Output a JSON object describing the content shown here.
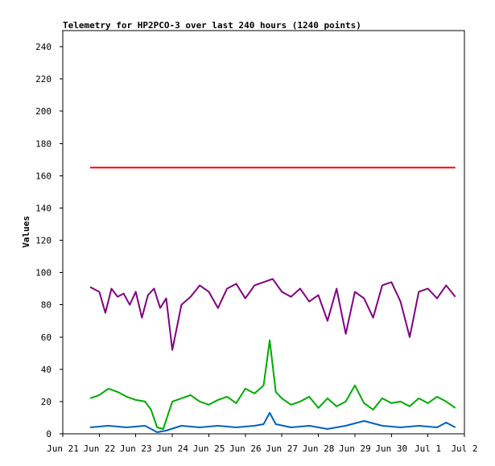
{
  "chart_data": {
    "type": "line",
    "title": "Telemetry for HP2PCO-3 over last 240 hours (1240 points)",
    "xlabel": "",
    "ylabel": "Values",
    "ylim": [
      0,
      250
    ],
    "yticks": [
      0,
      20,
      40,
      60,
      80,
      100,
      120,
      140,
      160,
      180,
      200,
      220,
      240
    ],
    "xlim": [
      "2014-06-21",
      "2014-07-02"
    ],
    "xticks": [
      {
        "x": "2014-06-21",
        "label": "Jun 21"
      },
      {
        "x": "2014-06-22",
        "label": "Jun 22"
      },
      {
        "x": "2014-06-23",
        "label": "Jun 23"
      },
      {
        "x": "2014-06-24",
        "label": "Jun 24"
      },
      {
        "x": "2014-06-25",
        "label": "Jun 25"
      },
      {
        "x": "2014-06-26",
        "label": "Jun 26"
      },
      {
        "x": "2014-06-27",
        "label": "Jun 27"
      },
      {
        "x": "2014-06-28",
        "label": "Jun 28"
      },
      {
        "x": "2014-06-29",
        "label": "Jun 29"
      },
      {
        "x": "2014-06-30",
        "label": "Jun 30"
      },
      {
        "x": "2014-07-01",
        "label": "Jul 1"
      },
      {
        "x": "2014-07-02",
        "label": "Jul 2"
      }
    ],
    "grid": false,
    "legend": "none",
    "series": [
      {
        "color": "#ff0000",
        "x": [
          "2014-06-21 18:00",
          "2014-06-22 12:00",
          "2014-06-23 12:00",
          "2014-06-24 12:00",
          "2014-06-25 12:00",
          "2014-06-26 12:00",
          "2014-06-27 12:00",
          "2014-06-28 12:00",
          "2014-06-29 12:00",
          "2014-06-30 12:00",
          "2014-07-01 12:00",
          "2014-07-01 18:00"
        ],
        "y": [
          165,
          165,
          165,
          165,
          165,
          165,
          165,
          165,
          165,
          165,
          165,
          165
        ]
      },
      {
        "color": "#800080",
        "x": [
          "2014-06-21 18:00",
          "2014-06-22 00:00",
          "2014-06-22 04:00",
          "2014-06-22 08:00",
          "2014-06-22 12:00",
          "2014-06-22 16:00",
          "2014-06-22 20:00",
          "2014-06-23 00:00",
          "2014-06-23 04:00",
          "2014-06-23 08:00",
          "2014-06-23 12:00",
          "2014-06-23 16:00",
          "2014-06-23 20:00",
          "2014-06-24 00:00",
          "2014-06-24 06:00",
          "2014-06-24 12:00",
          "2014-06-24 18:00",
          "2014-06-25 00:00",
          "2014-06-25 06:00",
          "2014-06-25 12:00",
          "2014-06-25 18:00",
          "2014-06-26 00:00",
          "2014-06-26 06:00",
          "2014-06-26 12:00",
          "2014-06-26 18:00",
          "2014-06-27 00:00",
          "2014-06-27 06:00",
          "2014-06-27 12:00",
          "2014-06-27 18:00",
          "2014-06-28 00:00",
          "2014-06-28 06:00",
          "2014-06-28 12:00",
          "2014-06-28 18:00",
          "2014-06-29 00:00",
          "2014-06-29 06:00",
          "2014-06-29 12:00",
          "2014-06-29 18:00",
          "2014-06-30 00:00",
          "2014-06-30 06:00",
          "2014-06-30 12:00",
          "2014-06-30 18:00",
          "2014-07-01 00:00",
          "2014-07-01 06:00",
          "2014-07-01 12:00",
          "2014-07-01 18:00"
        ],
        "y": [
          91,
          88,
          75,
          90,
          85,
          87,
          80,
          88,
          72,
          86,
          90,
          78,
          84,
          52,
          80,
          85,
          92,
          88,
          78,
          90,
          93,
          84,
          92,
          94,
          96,
          88,
          85,
          90,
          82,
          86,
          70,
          90,
          62,
          88,
          84,
          72,
          92,
          94,
          82,
          60,
          88,
          90,
          84,
          92,
          85
        ]
      },
      {
        "color": "#00aa00",
        "x": [
          "2014-06-21 18:00",
          "2014-06-22 00:00",
          "2014-06-22 06:00",
          "2014-06-22 12:00",
          "2014-06-22 18:00",
          "2014-06-23 00:00",
          "2014-06-23 06:00",
          "2014-06-23 10:00",
          "2014-06-23 14:00",
          "2014-06-23 18:00",
          "2014-06-24 00:00",
          "2014-06-24 06:00",
          "2014-06-24 12:00",
          "2014-06-24 18:00",
          "2014-06-25 00:00",
          "2014-06-25 06:00",
          "2014-06-25 12:00",
          "2014-06-25 18:00",
          "2014-06-26 00:00",
          "2014-06-26 06:00",
          "2014-06-26 12:00",
          "2014-06-26 16:00",
          "2014-06-26 20:00",
          "2014-06-27 00:00",
          "2014-06-27 06:00",
          "2014-06-27 12:00",
          "2014-06-27 18:00",
          "2014-06-28 00:00",
          "2014-06-28 06:00",
          "2014-06-28 12:00",
          "2014-06-28 18:00",
          "2014-06-29 00:00",
          "2014-06-29 06:00",
          "2014-06-29 12:00",
          "2014-06-29 18:00",
          "2014-06-30 00:00",
          "2014-06-30 06:00",
          "2014-06-30 12:00",
          "2014-06-30 18:00",
          "2014-07-01 00:00",
          "2014-07-01 06:00",
          "2014-07-01 12:00",
          "2014-07-01 18:00"
        ],
        "y": [
          22,
          24,
          28,
          26,
          23,
          21,
          20,
          15,
          4,
          3,
          20,
          22,
          24,
          20,
          18,
          21,
          23,
          19,
          28,
          25,
          30,
          58,
          26,
          22,
          18,
          20,
          23,
          16,
          22,
          17,
          20,
          30,
          19,
          15,
          22,
          19,
          20,
          17,
          22,
          19,
          23,
          20,
          16
        ]
      },
      {
        "color": "#0060c0",
        "x": [
          "2014-06-21 18:00",
          "2014-06-22 06:00",
          "2014-06-22 18:00",
          "2014-06-23 06:00",
          "2014-06-23 14:00",
          "2014-06-23 20:00",
          "2014-06-24 06:00",
          "2014-06-24 18:00",
          "2014-06-25 06:00",
          "2014-06-25 18:00",
          "2014-06-26 06:00",
          "2014-06-26 12:00",
          "2014-06-26 16:00",
          "2014-06-26 20:00",
          "2014-06-27 06:00",
          "2014-06-27 18:00",
          "2014-06-28 06:00",
          "2014-06-28 18:00",
          "2014-06-29 06:00",
          "2014-06-29 18:00",
          "2014-06-30 06:00",
          "2014-06-30 18:00",
          "2014-07-01 06:00",
          "2014-07-01 12:00",
          "2014-07-01 18:00"
        ],
        "y": [
          4,
          5,
          4,
          5,
          1,
          2,
          5,
          4,
          5,
          4,
          5,
          6,
          13,
          6,
          4,
          5,
          3,
          5,
          8,
          5,
          4,
          5,
          4,
          7,
          4
        ]
      }
    ]
  }
}
